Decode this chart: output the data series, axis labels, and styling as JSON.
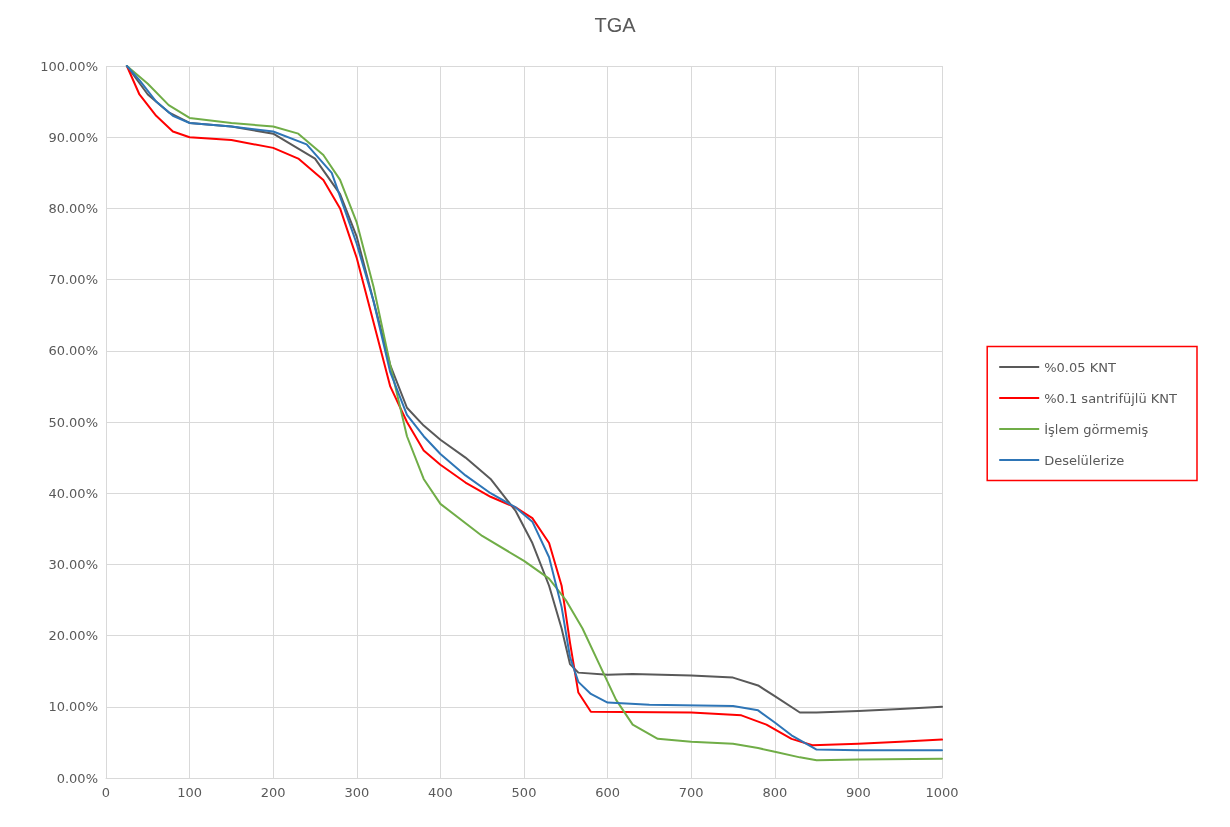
{
  "chart_data": {
    "type": "line",
    "title": "TGA",
    "xlim": [
      0,
      1000
    ],
    "xticks": [
      0,
      100,
      200,
      300,
      400,
      500,
      600,
      700,
      800,
      900,
      1000
    ],
    "ylim": [
      0,
      100
    ],
    "yticks": [
      {
        "value": 0,
        "label": "0.00%"
      },
      {
        "value": 10,
        "label": "10.00%"
      },
      {
        "value": 20,
        "label": "20.00%"
      },
      {
        "value": 30,
        "label": "30.00%"
      },
      {
        "value": 40,
        "label": "40.00%"
      },
      {
        "value": 50,
        "label": "50.00%"
      },
      {
        "value": 60,
        "label": "60.00%"
      },
      {
        "value": 70,
        "label": "70.00%"
      },
      {
        "value": 80,
        "label": "80.00%"
      },
      {
        "value": 90,
        "label": "90.00%"
      },
      {
        "value": 100,
        "label": "100.00%"
      }
    ],
    "grid": true,
    "legend": "right",
    "marker": "none",
    "line_style": "solid",
    "series": [
      {
        "name": "%0.05 KNT",
        "color": "#595959",
        "x": [
          25,
          50,
          75,
          100,
          150,
          200,
          250,
          280,
          300,
          320,
          340,
          360,
          380,
          400,
          430,
          460,
          490,
          510,
          530,
          545,
          555,
          565,
          600,
          630,
          700,
          750,
          780,
          800,
          830,
          850,
          900,
          950,
          1000
        ],
        "values": [
          100,
          96,
          93.5,
          92,
          91.5,
          90.5,
          87,
          82,
          76,
          67,
          58,
          52,
          49.5,
          47.5,
          45,
          42,
          37.5,
          33,
          27,
          21,
          16,
          14.8,
          14.5,
          14.6,
          14.4,
          14.1,
          13,
          11.5,
          9.2,
          9.2,
          9.4,
          9.7,
          10
        ]
      },
      {
        "name": "%0.1 santrifüjlü KNT",
        "color": "#ff0000",
        "x": [
          25,
          40,
          60,
          80,
          100,
          150,
          200,
          230,
          260,
          280,
          300,
          320,
          340,
          360,
          380,
          400,
          430,
          460,
          490,
          510,
          530,
          545,
          555,
          565,
          580,
          700,
          760,
          790,
          820,
          845,
          900,
          950,
          1000
        ],
        "values": [
          100,
          96,
          93,
          90.8,
          90,
          89.6,
          88.5,
          87,
          84,
          80,
          73,
          64,
          55,
          50,
          46,
          44,
          41.5,
          39.5,
          38,
          36.5,
          33,
          27,
          19,
          12,
          9.3,
          9.2,
          8.8,
          7.5,
          5.5,
          4.6,
          4.8,
          5.1,
          5.4
        ]
      },
      {
        "name": "İşlem görmemiş",
        "color": "#70ad47",
        "x": [
          25,
          50,
          75,
          100,
          150,
          200,
          230,
          260,
          280,
          300,
          320,
          340,
          350,
          360,
          380,
          400,
          450,
          500,
          530,
          550,
          570,
          590,
          610,
          630,
          660,
          700,
          750,
          780,
          800,
          830,
          850,
          900,
          1000
        ],
        "values": [
          100,
          97.5,
          94.5,
          92.7,
          92,
          91.5,
          90.5,
          87.5,
          84,
          78,
          69,
          58,
          53,
          48,
          42,
          38.5,
          34,
          30.5,
          28,
          25,
          21,
          16,
          11,
          7.5,
          5.5,
          5.1,
          4.8,
          4.2,
          3.7,
          2.9,
          2.5,
          2.6,
          2.7
        ]
      },
      {
        "name": "Deselülerize",
        "color": "#2e75b6",
        "x": [
          25,
          40,
          60,
          80,
          100,
          150,
          200,
          240,
          270,
          300,
          320,
          340,
          360,
          380,
          400,
          430,
          460,
          490,
          510,
          530,
          545,
          555,
          565,
          580,
          600,
          650,
          750,
          780,
          800,
          820,
          850,
          900,
          1000
        ],
        "values": [
          100,
          98,
          95,
          93,
          92,
          91.5,
          90.8,
          89,
          85,
          75,
          67,
          57,
          51,
          48,
          45.5,
          42.5,
          40,
          38,
          36,
          31,
          24,
          17,
          13.5,
          11.8,
          10.6,
          10.3,
          10.1,
          9.5,
          7.8,
          6,
          4,
          3.9,
          3.9
        ]
      }
    ]
  }
}
